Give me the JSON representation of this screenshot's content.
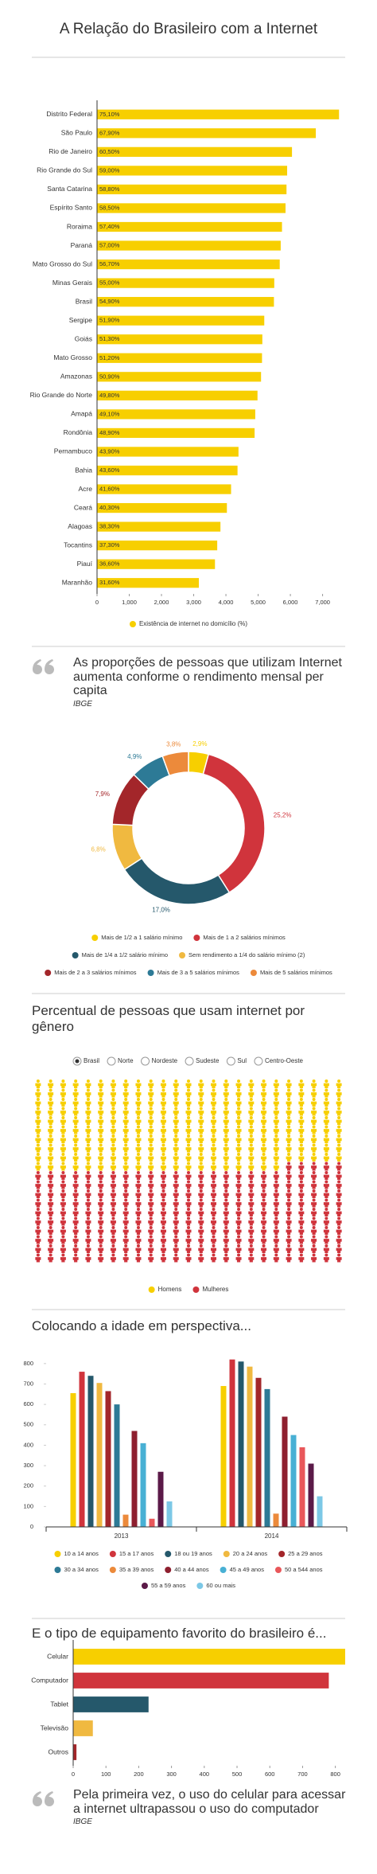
{
  "chart_data": [
    {
      "type": "hbar",
      "title": "A Relação do Brasileiro com a Internet",
      "categories": [
        "Distrito Federal",
        "São Paulo",
        "Rio de Janeiro",
        "Rio Grande do Sul",
        "Santa Catarina",
        "Espírito Santo",
        "Roraima",
        "Paraná",
        "Mato Grosso do Sul",
        "Minas Gerais",
        "Brasil",
        "Sergipe",
        "Goiás",
        "Mato Grosso",
        "Amazonas",
        "Rio Grande do Norte",
        "Amapá",
        "Rondônia",
        "Pernambuco",
        "Bahia",
        "Acre",
        "Ceará",
        "Alagoas",
        "Tocantins",
        "Piauí",
        "Maranhão"
      ],
      "series": [
        {
          "name": "Existência de internet no domicílio (%)",
          "color": "#f7cf00",
          "values": [
            7510,
            6790,
            6050,
            5900,
            5880,
            5850,
            5740,
            5700,
            5670,
            5500,
            5490,
            5190,
            5130,
            5120,
            5090,
            4980,
            4910,
            4890,
            4390,
            4360,
            4160,
            4030,
            3830,
            3730,
            3660,
            3160
          ],
          "value_labels": [
            "75,10%",
            "67,90%",
            "60,50%",
            "59,00%",
            "58,80%",
            "58,50%",
            "57,40%",
            "57,00%",
            "56,70%",
            "55,00%",
            "54,90%",
            "51,90%",
            "51,30%",
            "51,20%",
            "50,90%",
            "49,80%",
            "49,10%",
            "48,90%",
            "43,90%",
            "43,60%",
            "41,60%",
            "40,30%",
            "38,30%",
            "37,30%",
            "36,60%",
            "31,60%"
          ]
        }
      ],
      "xlim": [
        0,
        7800
      ],
      "xticks": [
        0,
        {
          "value": 1000,
          "label": "1,000"
        },
        {
          "value": 2000,
          "label": "2,000"
        },
        {
          "value": 3000,
          "label": "3,000"
        },
        {
          "value": 4000,
          "label": "4,000"
        },
        {
          "value": 5000,
          "label": "5,000"
        },
        {
          "value": 6000,
          "label": "6,000"
        },
        {
          "value": 7000,
          "label": "7,000"
        }
      ],
      "legend": "bottom"
    },
    {
      "type": "donut",
      "title": "As proporções de pessoas que utilizam Internet aumenta conforme o rendimento mensal per capita",
      "source": "IBGE",
      "categories": [
        "Mais de 1/2 a 1 salário mínimo",
        "Mais de 1 a 2 salários mínimos",
        "Mais de 1/4 a 1/2 salário mínimo",
        "Sem rendimento a 1/4 do salário mínimo (2)",
        "Mais de 2 a 3 salários mínimos",
        "Mais de 3 a 5 salários mínimos",
        "Mais de 5 salários mínimos"
      ],
      "values": [
        2.9,
        25.2,
        17.0,
        6.8,
        7.9,
        4.9,
        3.8
      ],
      "value_labels": [
        "2,9%",
        "25,2%",
        "17,0%",
        "6,8%",
        "7,9%",
        "4,9%",
        "3,8%"
      ],
      "colors": [
        "#f7cf00",
        "#d0343c",
        "#25586b",
        "#f0b940",
        "#a3262a",
        "#2d7a96",
        "#ec8a3b"
      ],
      "legend": "bottom"
    },
    {
      "type": "pictogram",
      "title": "Percentual de pessoas que usam internet por gênero",
      "filters": [
        "Brasil",
        "Norte",
        "Nordeste",
        "Sudeste",
        "Sul",
        "Centro-Oeste"
      ],
      "selected": 0,
      "series": [
        {
          "name": "Homens",
          "color": "#f7cf00",
          "values": [
            49
          ]
        },
        {
          "name": "Mulheres",
          "color": "#d0343c",
          "values": [
            51
          ]
        }
      ],
      "legend": "bottom"
    },
    {
      "type": "grouped_bar",
      "title": "Colocando a idade em perspectiva...",
      "categories": [
        "2013",
        "2014"
      ],
      "series": [
        {
          "name": "10 a 14 anos",
          "color": "#f7cf00",
          "values": [
            655,
            690
          ]
        },
        {
          "name": "15 a 17 anos",
          "color": "#d0343c",
          "values": [
            760,
            820
          ]
        },
        {
          "name": "18 ou 19 anos",
          "color": "#25586b",
          "values": [
            740,
            810
          ]
        },
        {
          "name": "20 a 24 anos",
          "color": "#f0b940",
          "values": [
            705,
            785
          ]
        },
        {
          "name": "25 a 29 anos",
          "color": "#a3262a",
          "values": [
            665,
            730
          ]
        },
        {
          "name": "30 a 34 anos",
          "color": "#2d7a96",
          "values": [
            600,
            675
          ]
        },
        {
          "name": "35 a 39 anos",
          "color": "#ec8a3b",
          "values": [
            60,
            65
          ]
        },
        {
          "name": "40 a 44 anos",
          "color": "#8e1f2f",
          "values": [
            470,
            540
          ]
        },
        {
          "name": "45 a 49 anos",
          "color": "#48b0d4",
          "values": [
            410,
            450
          ]
        },
        {
          "name": "50 a 544 anos",
          "color": "#e9575a",
          "values": [
            40,
            390
          ]
        },
        {
          "name": "55 a 59 anos",
          "color": "#5b1a48",
          "values": [
            270,
            310
          ]
        },
        {
          "name": "60 ou mais",
          "color": "#7cc8e6",
          "values": [
            125,
            150
          ]
        }
      ],
      "ylim": [
        0,
        850
      ],
      "yticks": [
        0,
        100,
        200,
        300,
        400,
        500,
        600,
        700,
        800
      ],
      "legend": "bottom"
    },
    {
      "type": "hbar",
      "title": "E o tipo de equipamento favorito do brasileiro é...",
      "categories": [
        "Celular",
        "Computador",
        "Tablet",
        "Televisão",
        "Outros"
      ],
      "values": [
        830,
        780,
        230,
        60,
        10
      ],
      "colors": [
        "#f7cf00",
        "#d0343c",
        "#25586b",
        "#f0b940",
        "#a3262a"
      ],
      "xlim": [
        0,
        830
      ],
      "xticks": [
        0,
        100,
        200,
        300,
        400,
        500,
        600,
        700,
        800
      ]
    }
  ],
  "closing": {
    "quote": "Pela primeira vez, o uso do celular para acessar a internet ultrapassou o uso do computador",
    "source": "IBGE"
  }
}
